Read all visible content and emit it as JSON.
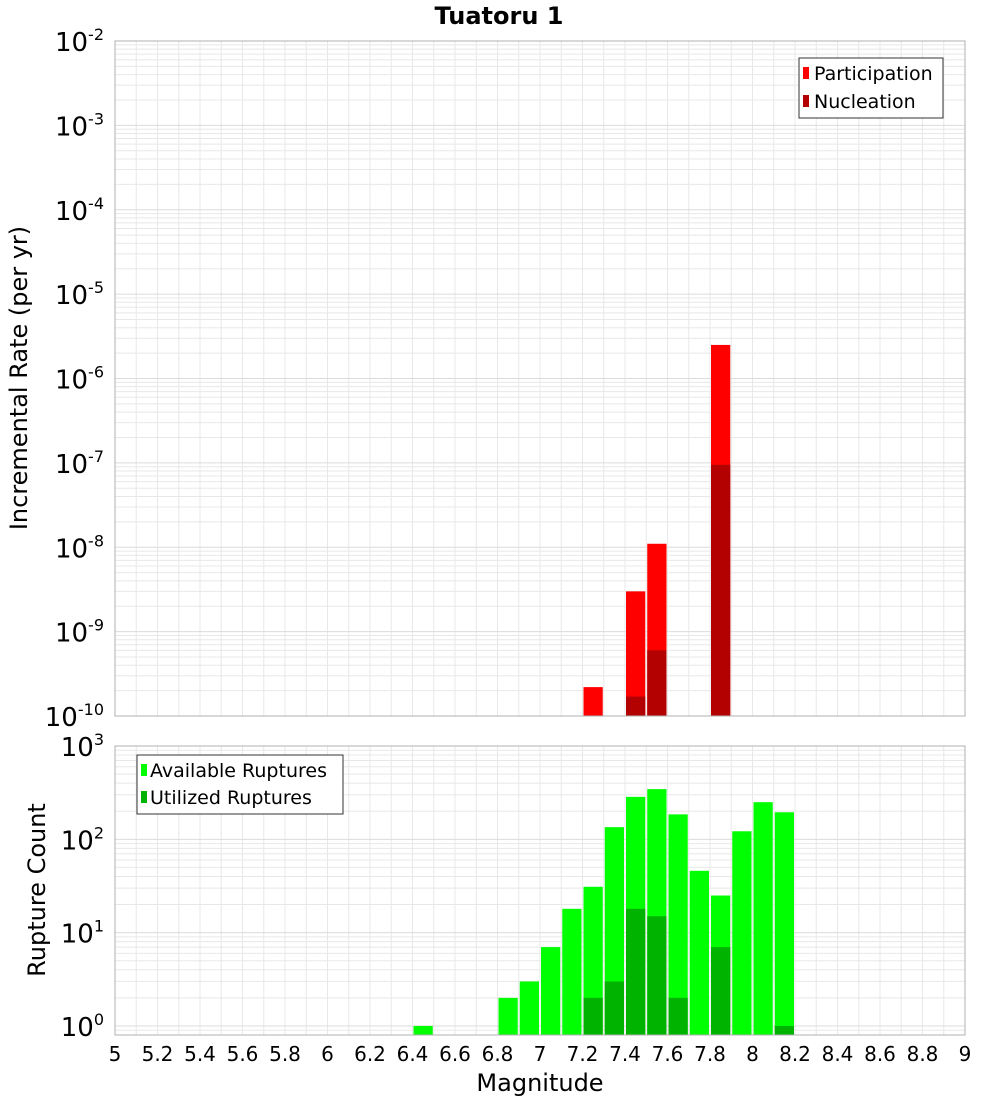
{
  "title": "Tuatoru 1",
  "x_axis_label": "Magnitude",
  "colors": {
    "participation": "#ff0000",
    "nucleation": "#b30000",
    "available": "#00ff00",
    "utilized": "#00b300",
    "grid": "#e8e8e8",
    "frame": "#b0b0b0"
  },
  "chart_data": [
    {
      "type": "bar",
      "ylabel": "Incremental Rate (per yr)",
      "yscale": "log",
      "xlim": [
        5,
        9
      ],
      "ylim": [
        1e-10,
        0.01
      ],
      "y_ticks": [
        {
          "base": "10",
          "exp": "-2"
        },
        {
          "base": "10",
          "exp": "-3"
        },
        {
          "base": "10",
          "exp": "-4"
        },
        {
          "base": "10",
          "exp": "-5"
        },
        {
          "base": "10",
          "exp": "-6"
        },
        {
          "base": "10",
          "exp": "-7"
        },
        {
          "base": "10",
          "exp": "-8"
        },
        {
          "base": "10",
          "exp": "-9"
        },
        {
          "base": "10",
          "exp": "-10"
        }
      ],
      "legend": [
        "Participation",
        "Nucleation"
      ],
      "legend_position": "top-right",
      "grid": true,
      "series": [
        {
          "name": "Participation",
          "x": [
            7.25,
            7.45,
            7.55,
            7.85
          ],
          "values": [
            2.2e-10,
            3e-09,
            1.1e-08,
            2.5e-06
          ]
        },
        {
          "name": "Nucleation",
          "x": [
            7.45,
            7.55,
            7.85
          ],
          "values": [
            1.7e-10,
            6e-10,
            9.5e-08
          ]
        }
      ]
    },
    {
      "type": "bar",
      "ylabel": "Rupture Count",
      "yscale": "log",
      "xlim": [
        5,
        9
      ],
      "ylim": [
        0.8,
        1000
      ],
      "y_ticks": [
        {
          "base": "10",
          "exp": "3"
        },
        {
          "base": "10",
          "exp": "2"
        },
        {
          "base": "10",
          "exp": "1"
        },
        {
          "base": "10",
          "exp": "0"
        }
      ],
      "legend": [
        "Available Ruptures",
        "Utilized Ruptures"
      ],
      "legend_position": "top-left",
      "grid": true,
      "series": [
        {
          "name": "Available Ruptures",
          "x": [
            6.45,
            6.85,
            6.95,
            7.05,
            7.15,
            7.25,
            7.35,
            7.45,
            7.55,
            7.65,
            7.75,
            7.85,
            7.95,
            8.05,
            8.15
          ],
          "values": [
            1,
            2,
            3,
            7,
            18,
            31,
            135,
            285,
            345,
            185,
            46,
            25,
            122,
            250,
            195
          ]
        },
        {
          "name": "Utilized Ruptures",
          "x": [
            7.25,
            7.35,
            7.45,
            7.55,
            7.65,
            7.85,
            8.15
          ],
          "values": [
            2,
            3,
            18,
            15,
            2,
            7,
            1
          ]
        }
      ]
    }
  ],
  "x_ticks": [
    "5",
    "5.2",
    "5.4",
    "5.6",
    "5.8",
    "6",
    "6.2",
    "6.4",
    "6.6",
    "6.8",
    "7",
    "7.2",
    "7.4",
    "7.6",
    "7.8",
    "8",
    "8.2",
    "8.4",
    "8.6",
    "8.8",
    "9"
  ]
}
